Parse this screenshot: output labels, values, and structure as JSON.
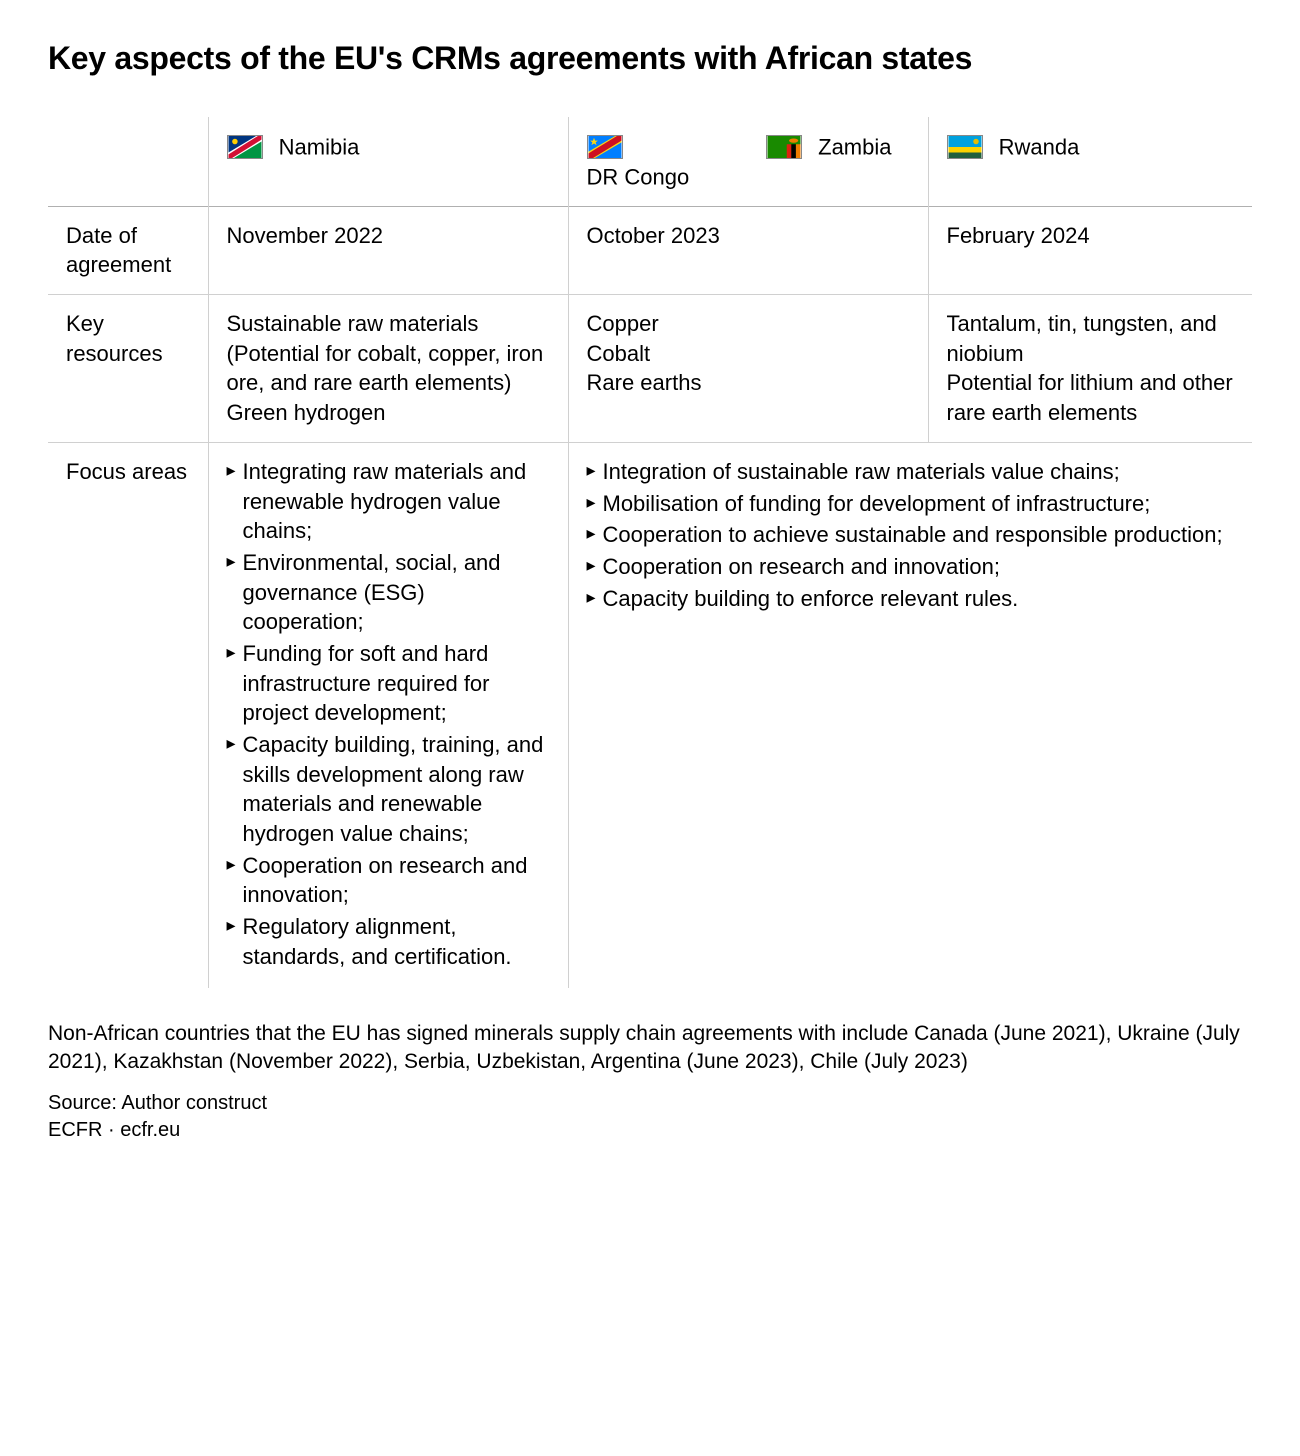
{
  "title": "Key aspects of the EU's CRMs agreements with African states",
  "columns": {
    "namibia": {
      "label": "Namibia"
    },
    "drcongo": {
      "label": "DR Congo"
    },
    "zambia": {
      "label": "Zambia"
    },
    "rwanda": {
      "label": "Rwanda"
    }
  },
  "rows": {
    "date": {
      "label": "Date of agreement",
      "namibia": "November 2022",
      "drc_zambia": "October 2023",
      "rwanda": "February 2024"
    },
    "resources": {
      "label": "Key resources",
      "namibia": "Sustainable raw materials (Potential for cobalt, copper, iron ore, and rare earth elements)\nGreen hydrogen",
      "drc_zambia": "Copper\nCobalt\nRare earths",
      "rwanda": "Tantalum, tin, tungsten, and niobium\nPotential for lithium and other rare earth elements"
    },
    "focus": {
      "label": "Focus areas",
      "namibia_items": [
        "Integrating raw materials and renewable hydrogen value chains;",
        "Environmental, social, and governance (ESG) cooperation;",
        "Funding for soft and hard infrastructure required for project development;",
        "Capacity building, training, and skills development along raw materials and renewable hydrogen value chains;",
        "Cooperation on research and innovation;",
        "Regulatory alignment, standards, and certification."
      ],
      "shared_items": [
        "Integration of sustainable raw materials value chains;",
        "Mobilisation of funding for development of infrastructure;",
        "Cooperation to achieve sustainable and responsible production;",
        "Cooperation on research and innovation;",
        "Capacity building to enforce relevant rules."
      ]
    }
  },
  "footnote": "Non-African countries that the EU has signed minerals supply chain agreements with include Canada (June 2021), Ukraine (July 2021), Kazakhstan (November 2022), Serbia, Uzbekistan, Argentina (June 2023), Chile (July 2023)",
  "source_line1": "Source: Author construct",
  "source_line2": "ECFR · ecfr.eu",
  "flags": {
    "namibia": {
      "bg": "#ffffff",
      "blue": "#003580",
      "green": "#009543",
      "red": "#d21034",
      "sun": "#ffce00"
    },
    "drcongo": {
      "bg": "#007fff",
      "red": "#ce1021",
      "yellow": "#f7d618"
    },
    "zambia": {
      "bg": "#198a00",
      "red": "#de2010",
      "black": "#000000",
      "orange": "#ef7d00"
    },
    "rwanda": {
      "blue": "#00a1de",
      "yellow": "#fad201",
      "green": "#20603d",
      "sun": "#e5be01"
    }
  },
  "style": {
    "background_color": "#ffffff",
    "text_color": "#000000",
    "border_color": "#d0d0d0",
    "title_fontsize": 32,
    "body_fontsize": 22,
    "footnote_fontsize": 21
  }
}
